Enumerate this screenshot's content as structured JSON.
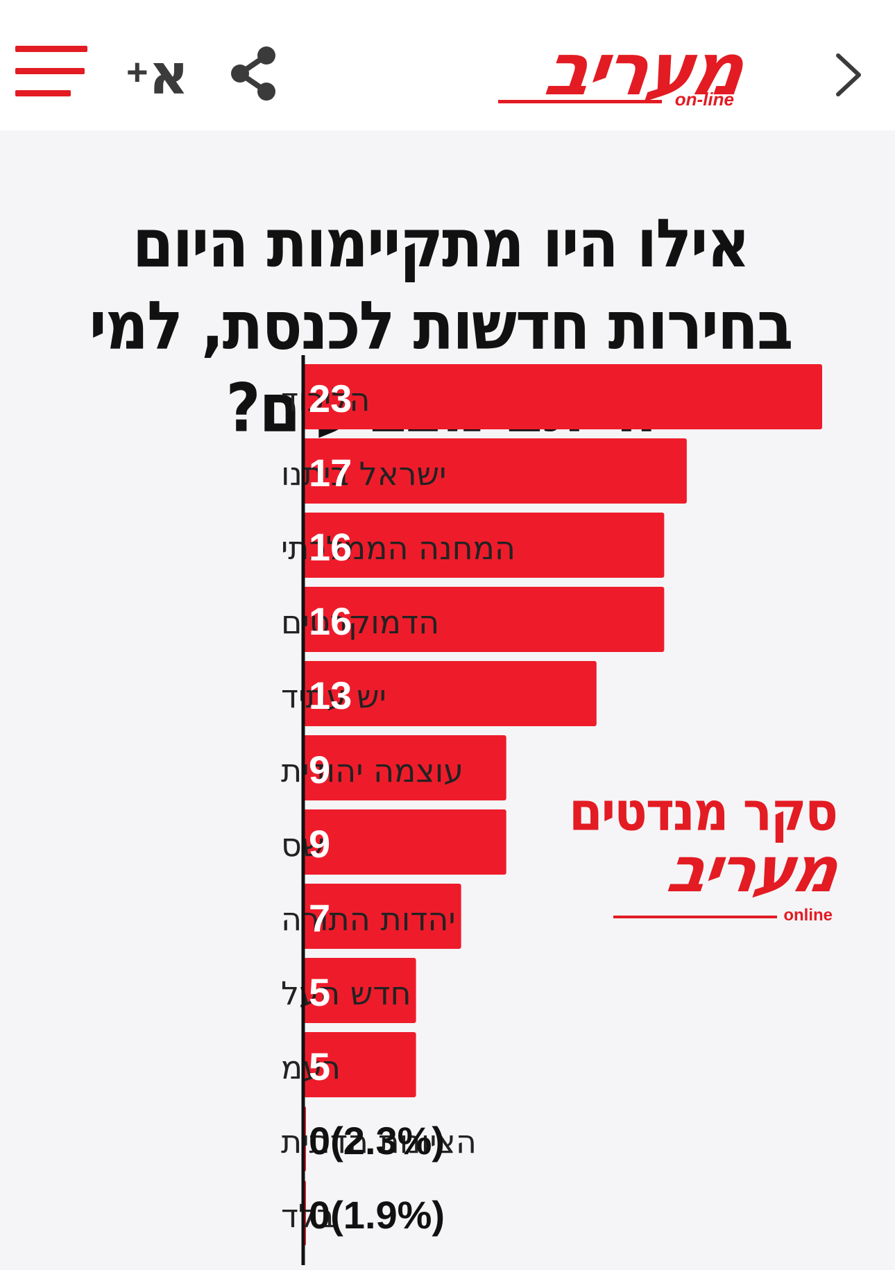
{
  "header": {
    "menu_icon": "hamburger-menu-icon",
    "font_size_label": "א",
    "font_size_plus": "+",
    "share_icon": "share-icon",
    "logo_text": "מעריב",
    "logo_sub": "on-line",
    "back_icon": "chevron-right-icon"
  },
  "colors": {
    "accent": "#e31b23",
    "bar": "#ee1c2b",
    "background": "#f5f5f7",
    "text": "#111111"
  },
  "chart_data": {
    "type": "bar",
    "orientation": "horizontal",
    "title": "אילו היו מתקיימות היום בחירות חדשות לכנסת, למי הייתם מצביעים?",
    "categories": [
      "הליכוד",
      "ישראל ביתנו",
      "המחנה הממלכתי",
      "הדמוקרטים",
      "יש עתיד",
      "עוצמה יהודית",
      "שס",
      "יהדות התורה",
      "חדש תעל",
      "רעמ",
      "הציונות הדתית",
      "בלד"
    ],
    "values": [
      23,
      17,
      16,
      16,
      13,
      9,
      9,
      7,
      5,
      5,
      0,
      0
    ],
    "data_labels": [
      "23",
      "17",
      "16",
      "16",
      "13",
      "9",
      "9",
      "7",
      "5",
      "5",
      "0(2.3%)",
      "0(1.9%)"
    ],
    "xlim": [
      0,
      24
    ],
    "grid": false,
    "legend": "none"
  },
  "watermark": {
    "title": "סקר מנדטים",
    "logo_text": "מעריב",
    "logo_sub": "online"
  }
}
